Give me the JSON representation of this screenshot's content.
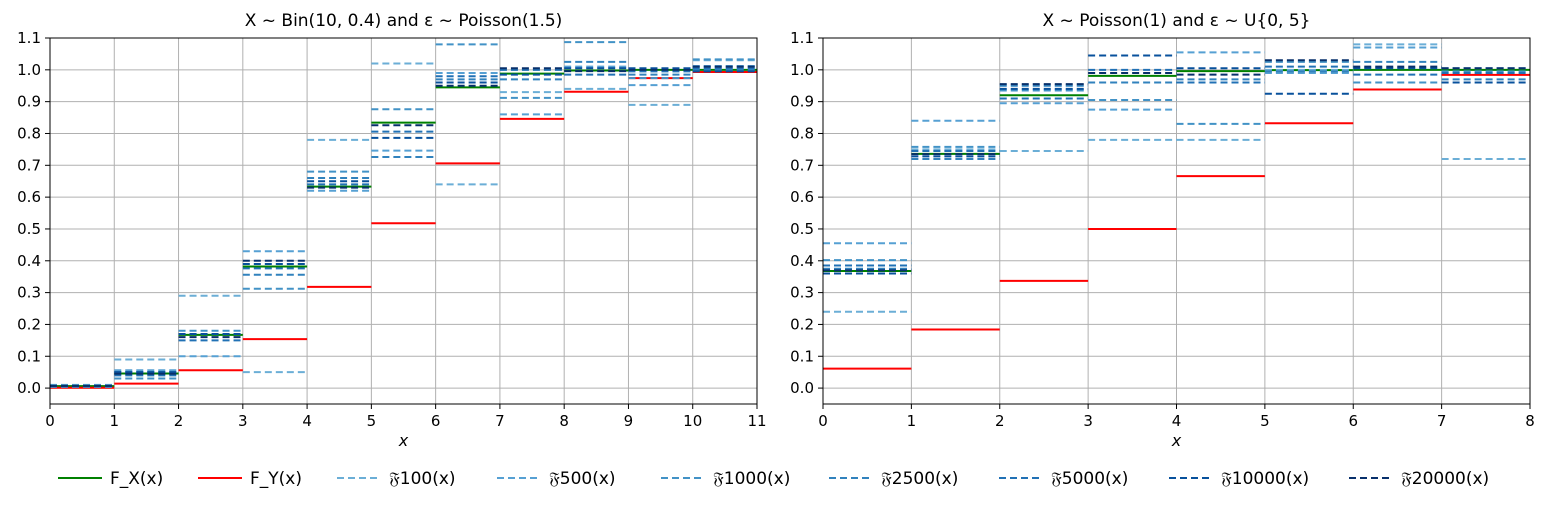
{
  "chart_data": [
    {
      "type": "step",
      "title": "X ~ Bin(10, 0.4) and ε ~ Poisson(1.5)",
      "xlabel": "x",
      "ylabel": "",
      "xlim": [
        0,
        11
      ],
      "ylim": [
        -0.05,
        1.1
      ],
      "xticks": [
        "0",
        "1",
        "2",
        "3",
        "4",
        "5",
        "6",
        "7",
        "8",
        "9",
        "10",
        "11"
      ],
      "yticks": [
        "0.0",
        "0.1",
        "0.2",
        "0.3",
        "0.4",
        "0.5",
        "0.6",
        "0.7",
        "0.8",
        "0.9",
        "1.0",
        "1.1"
      ],
      "grid": true,
      "series": [
        {
          "name": "F_X(x)",
          "values": [
            0.006,
            0.046,
            0.167,
            0.382,
            0.633,
            0.834,
            0.945,
            0.988,
            0.998,
            1.0,
            1.0
          ]
        },
        {
          "name": "F_Y(x)",
          "values": [
            0.001,
            0.014,
            0.056,
            0.154,
            0.318,
            0.518,
            0.706,
            0.846,
            0.931,
            0.974,
            0.993
          ]
        },
        {
          "name": "F100(x)",
          "values": [
            0.01,
            0.09,
            0.29,
            0.05,
            0.78,
            1.02,
            0.64,
            0.93,
            0.94,
            0.89,
            1.03
          ]
        },
        {
          "name": "F500(x)",
          "values": [
            0.004,
            0.056,
            0.1,
            0.43,
            0.62,
            0.746,
            0.99,
            0.86,
            1.01,
            0.952,
            1.012
          ]
        },
        {
          "name": "F1000(x)",
          "values": [
            0.006,
            0.03,
            0.18,
            0.312,
            0.68,
            0.876,
            1.08,
            0.912,
            1.087,
            0.974,
            1.033
          ]
        },
        {
          "name": "F2500(x)",
          "values": [
            0.008,
            0.05,
            0.17,
            0.356,
            0.66,
            0.726,
            0.97,
            0.97,
            1.025,
            0.985,
            1.0
          ]
        },
        {
          "name": "F5000(x)",
          "values": [
            0.006,
            0.04,
            0.15,
            0.376,
            0.64,
            0.806,
            0.98,
            1.0,
            0.985,
            0.995,
            1.005
          ]
        },
        {
          "name": "F10000(x)",
          "values": [
            0.006,
            0.05,
            0.17,
            0.39,
            0.65,
            0.786,
            0.96,
            0.985,
            1.005,
            1.005,
            0.995
          ]
        },
        {
          "name": "F20000(x)",
          "values": [
            0.007,
            0.045,
            0.16,
            0.4,
            0.63,
            0.826,
            0.95,
            1.005,
            0.996,
            1.0,
            1.01
          ]
        }
      ]
    },
    {
      "type": "step",
      "title": "X ~ Poisson(1) and ε ~ U{0, 5}",
      "xlabel": "x",
      "ylabel": "",
      "xlim": [
        0,
        8
      ],
      "ylim": [
        -0.05,
        1.1
      ],
      "xticks": [
        "0",
        "1",
        "2",
        "3",
        "4",
        "5",
        "6",
        "7",
        "8"
      ],
      "yticks": [
        "0.0",
        "0.1",
        "0.2",
        "0.3",
        "0.4",
        "0.5",
        "0.6",
        "0.7",
        "0.8",
        "0.9",
        "1.0",
        "1.1"
      ],
      "grid": true,
      "series": [
        {
          "name": "F_X(x)",
          "values": [
            0.368,
            0.736,
            0.92,
            0.981,
            0.996,
            0.999,
            1.0,
            1.0
          ]
        },
        {
          "name": "F_Y(x)",
          "values": [
            0.061,
            0.184,
            0.337,
            0.5,
            0.666,
            0.832,
            0.938,
            0.984
          ]
        },
        {
          "name": "F100(x)",
          "values": [
            0.24,
            0.75,
            0.745,
            0.78,
            0.78,
            1.0,
            1.08,
            0.72
          ]
        },
        {
          "name": "F500(x)",
          "values": [
            0.455,
            0.84,
            0.895,
            0.875,
            1.055,
            0.99,
            1.07,
            1.005
          ]
        },
        {
          "name": "F1000(x)",
          "values": [
            0.402,
            0.758,
            0.935,
            0.905,
            0.83,
            1.025,
            0.96,
            0.995
          ]
        },
        {
          "name": "F2500(x)",
          "values": [
            0.375,
            0.72,
            0.95,
            0.96,
            0.97,
            0.995,
            1.025,
            0.97
          ]
        },
        {
          "name": "F5000(x)",
          "values": [
            0.385,
            0.745,
            0.91,
            1.0,
            0.96,
            1.01,
            0.985,
            0.99
          ]
        },
        {
          "name": "F10000(x)",
          "values": [
            0.36,
            0.728,
            0.94,
            1.045,
            1.005,
            0.925,
            1.005,
            0.96
          ]
        },
        {
          "name": "F20000(x)",
          "values": [
            0.37,
            0.735,
            0.955,
            0.99,
            0.985,
            1.03,
            1.01,
            1.005
          ]
        }
      ]
    }
  ],
  "legend": [
    {
      "label": "F_X(x)",
      "color": "#008000",
      "dashed": false
    },
    {
      "label": "F_Y(x)",
      "color": "#ff0000",
      "dashed": false
    },
    {
      "label": "𝔉100(x)",
      "color": "#6baed6",
      "dashed": true
    },
    {
      "label": "𝔉500(x)",
      "color": "#56a0d3",
      "dashed": true
    },
    {
      "label": "𝔉1000(x)",
      "color": "#4292c6",
      "dashed": true
    },
    {
      "label": "𝔉2500(x)",
      "color": "#3182bd",
      "dashed": true
    },
    {
      "label": "𝔉5000(x)",
      "color": "#2171b5",
      "dashed": true
    },
    {
      "label": "𝔉10000(x)",
      "color": "#08519c",
      "dashed": true
    },
    {
      "label": "𝔉20000(x)",
      "color": "#08306b",
      "dashed": true
    }
  ]
}
